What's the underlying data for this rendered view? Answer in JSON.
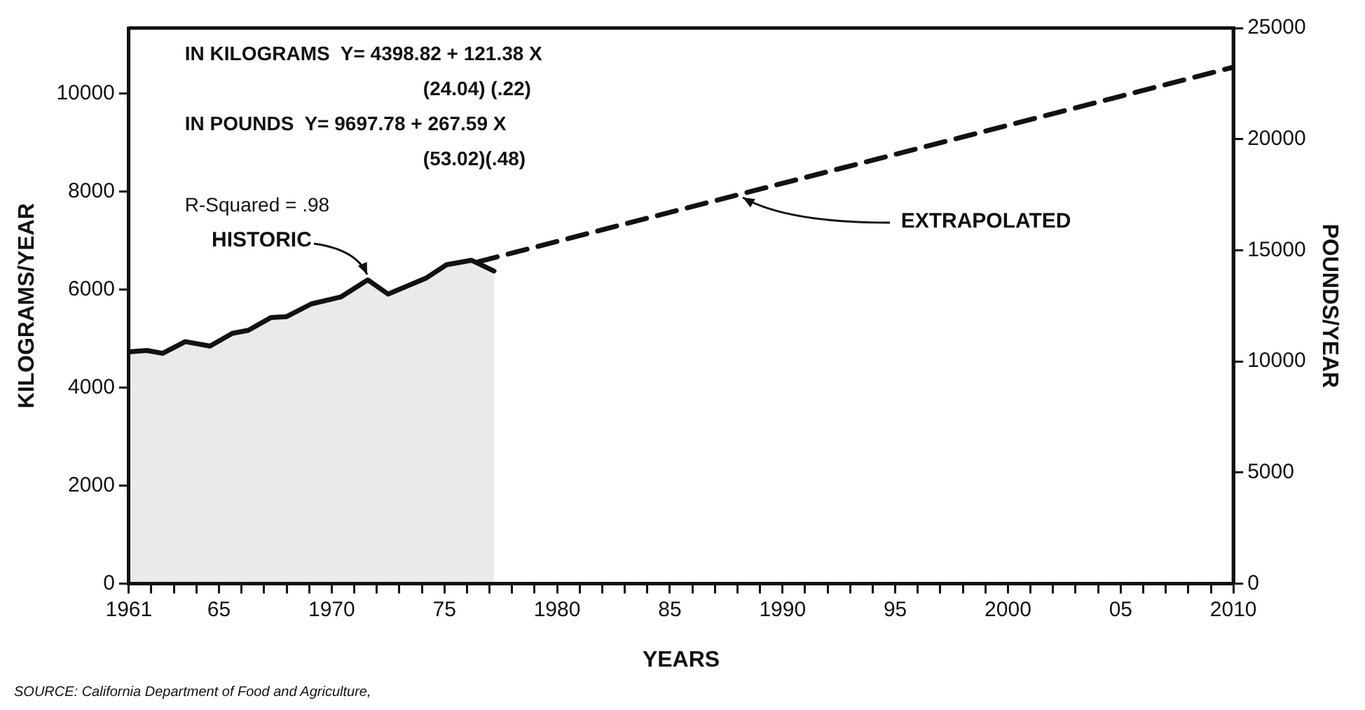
{
  "chart_data": {
    "type": "line",
    "xlabel": "YEARS",
    "ylabel": "KILOGRAMS/YEAR",
    "y2label": "POUNDS/YEAR",
    "series": [
      {
        "type": "area",
        "color": "#111111",
        "line_style": "solid",
        "x": [
          1961,
          1961.8,
          1962.5,
          1963.5,
          1964.6,
          1965.6,
          1966.3,
          1967.3,
          1968,
          1969.1,
          1970.4,
          1971.6,
          1972.5,
          1974.2,
          1975.1,
          1976.2,
          1977.2
        ],
        "values": [
          4730,
          4760,
          4700,
          4940,
          4850,
          5110,
          5170,
          5430,
          5450,
          5710,
          5850,
          6200,
          5910,
          6240,
          6510,
          6600,
          6380
        ]
      },
      {
        "type": "line",
        "color": "#111111",
        "line_style": "dashed",
        "x": [
          1976.5,
          2010
        ],
        "values": [
          6570,
          10540
        ]
      }
    ],
    "xlim": [
      1961,
      2010
    ],
    "xticks": [
      1961,
      {
        "value": 1962,
        "label": null
      },
      {
        "value": 1963,
        "label": null
      },
      {
        "value": 1964,
        "label": null
      },
      {
        "value": 1965,
        "label": "65"
      },
      {
        "value": 1966,
        "label": null
      },
      {
        "value": 1967,
        "label": null
      },
      {
        "value": 1968,
        "label": null
      },
      {
        "value": 1969,
        "label": null
      },
      1970,
      {
        "value": 1971,
        "label": null
      },
      {
        "value": 1972,
        "label": null
      },
      {
        "value": 1973,
        "label": null
      },
      {
        "value": 1974,
        "label": null
      },
      {
        "value": 1975,
        "label": "75"
      },
      {
        "value": 1976,
        "label": null
      },
      {
        "value": 1977,
        "label": null
      },
      {
        "value": 1978,
        "label": null
      },
      {
        "value": 1979,
        "label": null
      },
      1980,
      {
        "value": 1981,
        "label": null
      },
      {
        "value": 1982,
        "label": null
      },
      {
        "value": 1983,
        "label": null
      },
      {
        "value": 1984,
        "label": null
      },
      {
        "value": 1985,
        "label": "85"
      },
      {
        "value": 1986,
        "label": null
      },
      {
        "value": 1987,
        "label": null
      },
      {
        "value": 1988,
        "label": null
      },
      {
        "value": 1989,
        "label": null
      },
      1990,
      {
        "value": 1991,
        "label": null
      },
      {
        "value": 1992,
        "label": null
      },
      {
        "value": 1993,
        "label": null
      },
      {
        "value": 1994,
        "label": null
      },
      {
        "value": 1995,
        "label": "95"
      },
      {
        "value": 1996,
        "label": null
      },
      {
        "value": 1997,
        "label": null
      },
      {
        "value": 1998,
        "label": null
      },
      {
        "value": 1999,
        "label": null
      },
      2000,
      {
        "value": 2001,
        "label": null
      },
      {
        "value": 2002,
        "label": null
      },
      {
        "value": 2003,
        "label": null
      },
      {
        "value": 2004,
        "label": null
      },
      {
        "value": 2005,
        "label": "05"
      },
      {
        "value": 2006,
        "label": null
      },
      {
        "value": 2007,
        "label": null
      },
      {
        "value": 2008,
        "label": null
      },
      {
        "value": 2009,
        "label": null
      },
      2010
    ],
    "ylim": [
      0,
      11340
    ],
    "yticks": [
      0,
      2000,
      4000,
      6000,
      8000,
      10000
    ],
    "y2lim": [
      0,
      25000
    ],
    "y2ticks": [
      0,
      5000,
      10000,
      15000,
      20000,
      25000
    ],
    "grid": false,
    "legend": false,
    "marker": "none",
    "annotations": [
      "IN KILOGRAMS  Y= 4398.82 + 121.38 X",
      "(24.04) (.22)",
      "IN POUNDS  Y= 9697.78 + 267.59 X",
      "(53.02)(.48)",
      "R-Squared = .98",
      {
        "text": "HISTORIC",
        "x": 1971.6,
        "y": 6200
      },
      {
        "text": "EXTRAPOLATED",
        "x": 1988.1,
        "y": 8010
      },
      "SOURCE: California Department of Food and Agriculture,"
    ]
  }
}
